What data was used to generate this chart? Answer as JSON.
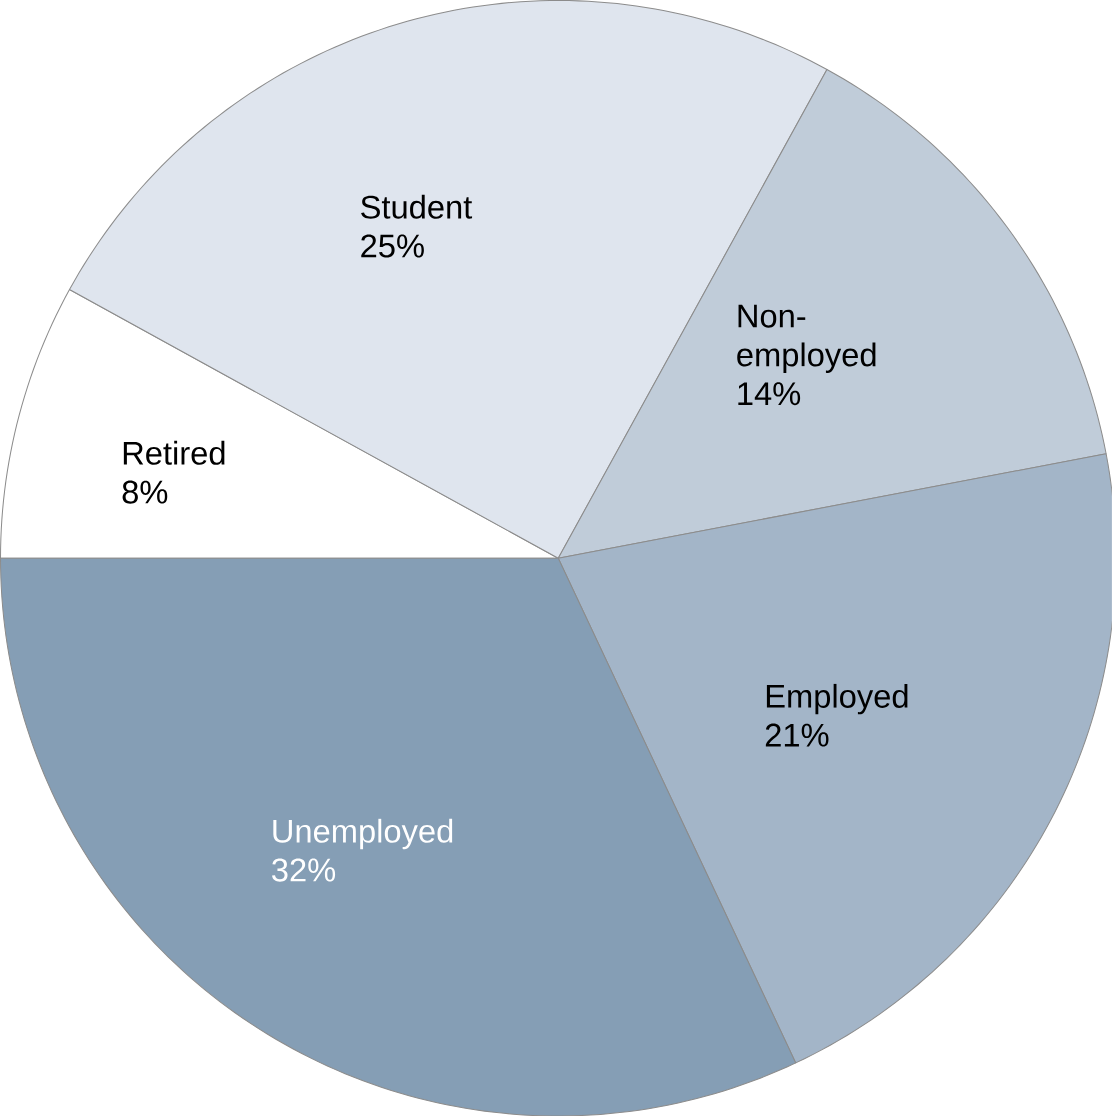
{
  "chart_data": {
    "type": "pie",
    "categories": [
      "Retired",
      "Student",
      "Non-employed",
      "Employed",
      "Unemployed"
    ],
    "values": [
      8,
      25,
      14,
      21,
      32
    ],
    "value_labels": [
      "8%",
      "25%",
      "14%",
      "21%",
      "32%"
    ],
    "colors": [
      "#ffffff",
      "#dfe5ee",
      "#c0ccd9",
      "#a3b5c8",
      "#859eb5"
    ]
  }
}
